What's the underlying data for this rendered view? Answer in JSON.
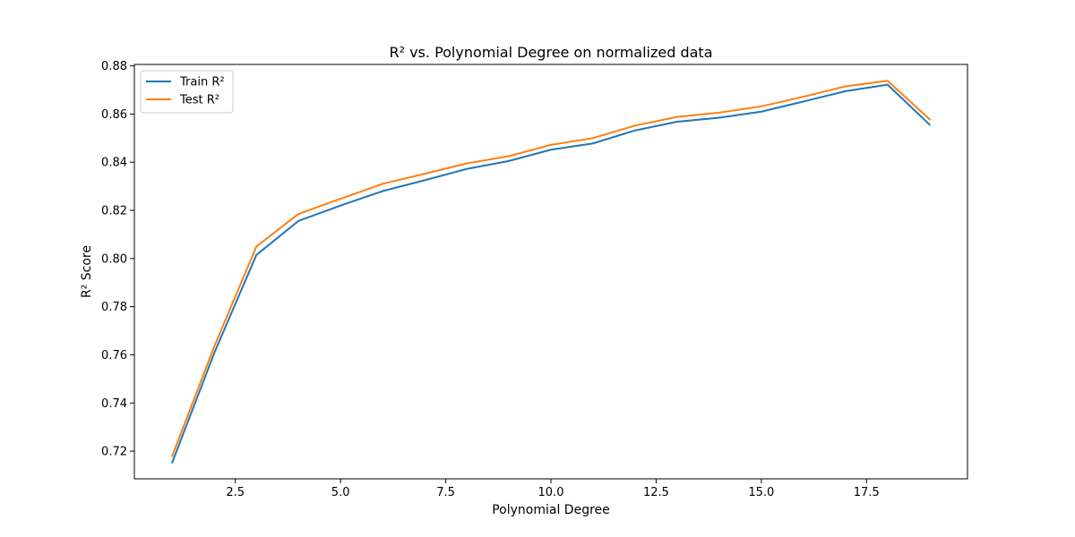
{
  "chart_data": {
    "type": "line",
    "title": "R² vs. Polynomial Degree on normalized data",
    "xlabel": "Polynomial Degree",
    "ylabel": "R² Score",
    "xlim": [
      0.1,
      19.9
    ],
    "ylim": [
      0.7085,
      0.8806
    ],
    "xticks": [
      2.5,
      5.0,
      7.5,
      10.0,
      12.5,
      15.0,
      17.5
    ],
    "xtick_labels": [
      "2.5",
      "5.0",
      "7.5",
      "10.0",
      "12.5",
      "15.0",
      "17.5"
    ],
    "yticks": [
      0.72,
      0.74,
      0.76,
      0.78,
      0.8,
      0.82,
      0.84,
      0.86,
      0.88
    ],
    "ytick_labels": [
      "0.72",
      "0.74",
      "0.76",
      "0.78",
      "0.80",
      "0.82",
      "0.84",
      "0.86",
      "0.88"
    ],
    "grid": false,
    "legend_position": "top-left",
    "x": [
      1,
      2,
      3,
      4,
      5,
      6,
      7,
      8,
      9,
      10,
      11,
      12,
      13,
      14,
      15,
      16,
      17,
      18,
      19
    ],
    "series": [
      {
        "name": "Train R²",
        "color": "#1f77b4",
        "values": [
          0.7153,
          0.7608,
          0.8015,
          0.8156,
          0.822,
          0.828,
          0.8325,
          0.8372,
          0.8405,
          0.8452,
          0.8478,
          0.8532,
          0.8568,
          0.8585,
          0.861,
          0.8652,
          0.8695,
          0.8722,
          0.8556
        ]
      },
      {
        "name": "Test R²",
        "color": "#ff7f0e",
        "values": [
          0.718,
          0.7635,
          0.805,
          0.8185,
          0.8248,
          0.831,
          0.8352,
          0.8395,
          0.8425,
          0.8472,
          0.85,
          0.8552,
          0.8588,
          0.8606,
          0.8632,
          0.8672,
          0.8715,
          0.8738,
          0.8578
        ]
      }
    ]
  }
}
